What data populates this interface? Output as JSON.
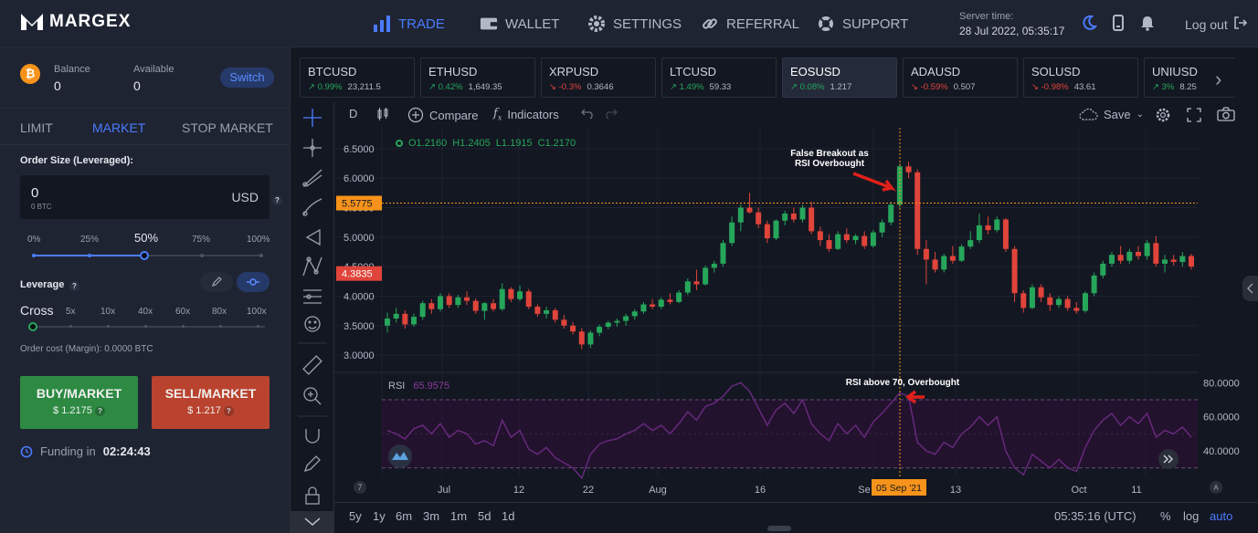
{
  "brand": {
    "name": "MARGEX"
  },
  "nav": [
    {
      "label": "TRADE",
      "icon": "bar-chart-icon",
      "active": true
    },
    {
      "label": "WALLET",
      "icon": "wallet-icon",
      "active": false
    },
    {
      "label": "SETTINGS",
      "icon": "gear-icon",
      "active": false
    },
    {
      "label": "REFERRAL",
      "icon": "link-icon",
      "active": false
    },
    {
      "label": "SUPPORT",
      "icon": "lifebuoy-icon",
      "active": false
    }
  ],
  "server": {
    "label": "Server time:",
    "value": "28 Jul 2022, 05:35:17"
  },
  "logout_label": "Log out",
  "account": {
    "balance_label": "Balance",
    "balance_value": "0",
    "available_label": "Available",
    "available_value": "0",
    "switch_label": "Switch"
  },
  "order_tabs": [
    "LIMIT",
    "MARKET",
    "STOP MARKET"
  ],
  "order": {
    "size_label": "Order Size (Leveraged):",
    "value": "0",
    "sub_value": "0 BTC",
    "currency": "USD",
    "percent_marks": [
      "0%",
      "25%",
      "50%",
      "75%",
      "100%"
    ],
    "selected_percent": "50%",
    "leverage_label": "Leverage",
    "cross_label": "Cross",
    "leverage_marks": [
      "5x",
      "10x",
      "40x",
      "60x",
      "80x",
      "100x"
    ],
    "cost_label": "Order cost (Margin): 0.0000 BTC",
    "buy_label": "BUY/MARKET",
    "buy_price": "$ 1.2175",
    "sell_label": "SELL/MARKET",
    "sell_price": "$ 1.217",
    "funding_label": "Funding in",
    "funding_value": "02:24:43"
  },
  "tickers": [
    {
      "name": "BTCUSD",
      "change": "0.99%",
      "price": "23,211.5",
      "dir": "up"
    },
    {
      "name": "ETHUSD",
      "change": "0.42%",
      "price": "1,649.35",
      "dir": "up"
    },
    {
      "name": "XRPUSD",
      "change": "-0.3%",
      "price": "0.3646",
      "dir": "dn"
    },
    {
      "name": "LTCUSD",
      "change": "1.49%",
      "price": "59.33",
      "dir": "up"
    },
    {
      "name": "EOSUSD",
      "change": "0.08%",
      "price": "1.217",
      "dir": "up",
      "active": true
    },
    {
      "name": "ADAUSD",
      "change": "-0.59%",
      "price": "0.507",
      "dir": "dn"
    },
    {
      "name": "SOLUSD",
      "change": "-0.98%",
      "price": "43.61",
      "dir": "dn"
    },
    {
      "name": "UNIUSD",
      "change": "3%",
      "price": "8.25",
      "dir": "up"
    }
  ],
  "toolbar": {
    "interval": "D",
    "compare": "Compare",
    "indicators": "Indicators",
    "save": "Save"
  },
  "ohlc": {
    "o": "O1.2160",
    "h": "H1.2405",
    "l": "L1.1915",
    "c": "C1.2170"
  },
  "rsi": {
    "label": "RSI",
    "value": "65.9575"
  },
  "annotations": {
    "breakout": "False Breakout as RSI Overbought",
    "rsi": "RSI above 70, Overbought"
  },
  "price_axis": [
    "6.5000",
    "6.0000",
    "5.5000",
    "5.0000",
    "4.5000",
    "4.0000",
    "3.5000",
    "3.0000"
  ],
  "price_tags": {
    "upper": "5.5775",
    "lower": "4.3835"
  },
  "rsi_axis": [
    "80.0000",
    "60.0000",
    "40.0000"
  ],
  "time_axis": [
    "Jul",
    "12",
    "22",
    "Aug",
    "16",
    "Se",
    "13",
    "Oct",
    "11"
  ],
  "crosshair_date": "05 Sep '21",
  "ranges": [
    "5y",
    "1y",
    "6m",
    "3m",
    "1m",
    "5d",
    "1d"
  ],
  "footer": {
    "clock": "05:35:16 (UTC)",
    "pct": "%",
    "log": "log",
    "auto": "auto"
  },
  "colors": {
    "up": "#26a65b",
    "down": "#e0443a",
    "accent": "#4a7cff",
    "price_tag": "#f7931a",
    "rsi_line": "#6a2a80"
  },
  "chart_data": {
    "type": "candlestick",
    "ylim": [
      2.8,
      6.7
    ],
    "candles": [
      [
        3.5,
        3.72,
        3.38,
        3.62
      ],
      [
        3.62,
        3.8,
        3.55,
        3.7
      ],
      [
        3.7,
        3.76,
        3.45,
        3.52
      ],
      [
        3.52,
        3.7,
        3.48,
        3.65
      ],
      [
        3.65,
        3.92,
        3.6,
        3.88
      ],
      [
        3.88,
        3.95,
        3.7,
        3.78
      ],
      [
        3.78,
        4.05,
        3.74,
        4.0
      ],
      [
        4.0,
        4.05,
        3.8,
        3.85
      ],
      [
        3.85,
        4.02,
        3.8,
        3.98
      ],
      [
        3.98,
        4.08,
        3.85,
        3.92
      ],
      [
        3.92,
        3.96,
        3.7,
        3.75
      ],
      [
        3.75,
        3.9,
        3.6,
        3.88
      ],
      [
        3.88,
        3.95,
        3.74,
        3.78
      ],
      [
        3.78,
        4.22,
        3.75,
        4.12
      ],
      [
        4.12,
        4.15,
        3.9,
        3.95
      ],
      [
        3.95,
        4.18,
        3.92,
        4.08
      ],
      [
        4.08,
        4.12,
        3.78,
        3.82
      ],
      [
        3.82,
        3.86,
        3.65,
        3.7
      ],
      [
        3.7,
        3.82,
        3.62,
        3.76
      ],
      [
        3.76,
        3.8,
        3.55,
        3.6
      ],
      [
        3.6,
        3.68,
        3.45,
        3.5
      ],
      [
        3.5,
        3.56,
        3.35,
        3.4
      ],
      [
        3.4,
        3.46,
        3.1,
        3.18
      ],
      [
        3.18,
        3.42,
        3.12,
        3.38
      ],
      [
        3.38,
        3.52,
        3.32,
        3.48
      ],
      [
        3.48,
        3.58,
        3.44,
        3.55
      ],
      [
        3.55,
        3.62,
        3.48,
        3.58
      ],
      [
        3.58,
        3.7,
        3.5,
        3.66
      ],
      [
        3.66,
        3.78,
        3.6,
        3.74
      ],
      [
        3.74,
        3.9,
        3.7,
        3.86
      ],
      [
        3.86,
        3.95,
        3.78,
        3.82
      ],
      [
        3.82,
        3.98,
        3.78,
        3.94
      ],
      [
        3.94,
        4.05,
        3.86,
        3.9
      ],
      [
        3.9,
        4.1,
        3.88,
        4.06
      ],
      [
        4.06,
        4.3,
        4.02,
        4.25
      ],
      [
        4.25,
        4.45,
        4.1,
        4.2
      ],
      [
        4.2,
        4.52,
        4.18,
        4.48
      ],
      [
        4.48,
        4.6,
        4.4,
        4.55
      ],
      [
        4.55,
        4.95,
        4.5,
        4.9
      ],
      [
        4.9,
        5.35,
        4.85,
        5.25
      ],
      [
        5.25,
        5.55,
        5.1,
        5.5
      ],
      [
        5.5,
        5.75,
        5.4,
        5.42
      ],
      [
        5.42,
        5.5,
        5.15,
        5.22
      ],
      [
        5.22,
        5.28,
        4.9,
        4.98
      ],
      [
        4.98,
        5.3,
        4.95,
        5.28
      ],
      [
        5.28,
        5.45,
        5.2,
        5.4
      ],
      [
        5.4,
        5.5,
        5.25,
        5.3
      ],
      [
        5.3,
        5.55,
        5.25,
        5.5
      ],
      [
        5.5,
        5.6,
        5.05,
        5.1
      ],
      [
        5.1,
        5.18,
        4.85,
        4.95
      ],
      [
        4.95,
        5.05,
        4.75,
        4.8
      ],
      [
        4.8,
        5.1,
        4.78,
        5.05
      ],
      [
        5.05,
        5.15,
        4.9,
        4.95
      ],
      [
        4.95,
        5.05,
        4.88,
        5.02
      ],
      [
        5.02,
        5.1,
        4.8,
        4.85
      ],
      [
        4.85,
        5.12,
        4.82,
        5.08
      ],
      [
        5.08,
        5.3,
        5.0,
        5.25
      ],
      [
        5.25,
        5.6,
        5.2,
        5.55
      ],
      [
        5.55,
        6.25,
        5.5,
        6.2
      ],
      [
        6.2,
        6.28,
        6.0,
        6.1
      ],
      [
        6.1,
        6.15,
        4.7,
        4.8
      ],
      [
        4.8,
        4.95,
        4.2,
        4.62
      ],
      [
        4.62,
        4.75,
        4.4,
        4.45
      ],
      [
        4.45,
        4.72,
        4.4,
        4.68
      ],
      [
        4.68,
        4.85,
        4.55,
        4.6
      ],
      [
        4.6,
        4.88,
        4.58,
        4.84
      ],
      [
        4.84,
        5.1,
        4.8,
        4.95
      ],
      [
        4.95,
        5.4,
        4.9,
        5.2
      ],
      [
        5.2,
        5.35,
        5.05,
        5.12
      ],
      [
        5.12,
        5.35,
        5.08,
        5.3
      ],
      [
        5.3,
        5.32,
        4.75,
        4.8
      ],
      [
        4.8,
        4.85,
        3.9,
        4.05
      ],
      [
        4.05,
        4.1,
        3.72,
        3.8
      ],
      [
        3.8,
        4.2,
        3.78,
        4.15
      ],
      [
        4.15,
        4.2,
        3.9,
        3.98
      ],
      [
        3.98,
        4.05,
        3.75,
        3.85
      ],
      [
        3.85,
        4.0,
        3.8,
        3.95
      ],
      [
        3.95,
        4.0,
        3.75,
        3.8
      ],
      [
        3.8,
        3.9,
        3.7,
        3.75
      ],
      [
        3.75,
        4.08,
        3.72,
        4.05
      ],
      [
        4.05,
        4.4,
        4.0,
        4.35
      ],
      [
        4.35,
        4.6,
        4.3,
        4.55
      ],
      [
        4.55,
        4.75,
        4.5,
        4.7
      ],
      [
        4.7,
        4.85,
        4.55,
        4.6
      ],
      [
        4.6,
        4.8,
        4.55,
        4.75
      ],
      [
        4.75,
        4.85,
        4.62,
        4.68
      ],
      [
        4.68,
        4.95,
        4.62,
        4.9
      ],
      [
        4.9,
        5.02,
        4.5,
        4.55
      ],
      [
        4.55,
        4.7,
        4.4,
        4.62
      ],
      [
        4.62,
        4.7,
        4.52,
        4.58
      ],
      [
        4.58,
        4.75,
        4.5,
        4.68
      ],
      [
        4.68,
        4.72,
        4.45,
        4.5
      ]
    ],
    "rsi": [
      52,
      50,
      47,
      53,
      55,
      50,
      56,
      48,
      52,
      50,
      44,
      46,
      43,
      58,
      48,
      52,
      41,
      38,
      42,
      36,
      33,
      30,
      24,
      38,
      44,
      46,
      47,
      50,
      52,
      56,
      52,
      55,
      50,
      56,
      63,
      58,
      66,
      68,
      72,
      78,
      80,
      75,
      65,
      55,
      64,
      68,
      62,
      70,
      56,
      50,
      46,
      56,
      50,
      55,
      48,
      57,
      62,
      68,
      74,
      72,
      45,
      40,
      38,
      45,
      42,
      50,
      54,
      60,
      55,
      60,
      40,
      30,
      26,
      38,
      34,
      30,
      35,
      30,
      28,
      42,
      52,
      58,
      62,
      55,
      60,
      56,
      62,
      48,
      52,
      50,
      54,
      48
    ]
  }
}
